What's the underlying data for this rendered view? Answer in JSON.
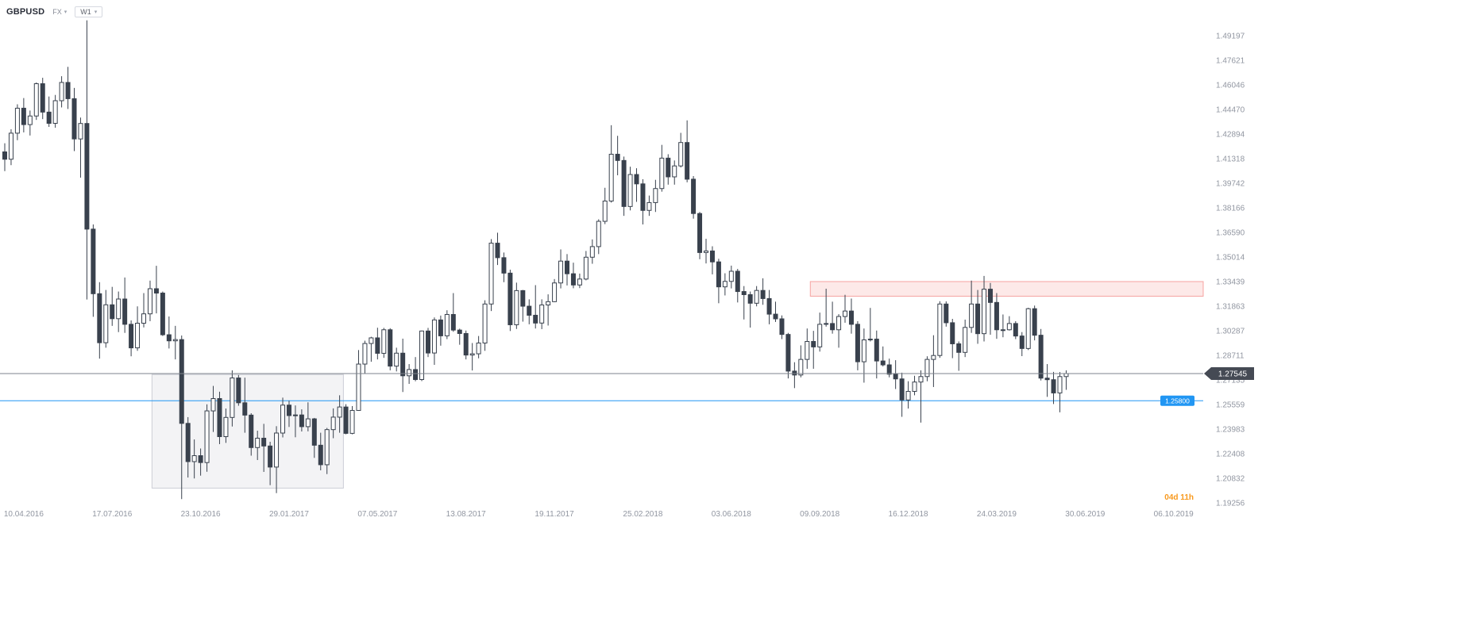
{
  "header": {
    "symbol": "GBPUSD",
    "market": "FX",
    "timeframe": "W1"
  },
  "overlays": {
    "current_price": {
      "label": "1.27545",
      "price": 1.27545,
      "line_color": "#7e838c",
      "badge_bg": "#454a54",
      "badge_text_color": "#ffffff"
    },
    "alert_line": {
      "label": "1.25800",
      "price": 1.258,
      "color": "#2196f3",
      "badge_text_color": "#ffffff"
    },
    "countdown": {
      "text": "04d 11h",
      "color": "#f8991d"
    },
    "resistance_zone": {
      "week_start": 127.5,
      "price_top": 1.3344,
      "price_bottom": 1.325,
      "fill": "rgba(239,83,80,0.13)",
      "stroke": "rgba(239,83,80,0.5)"
    },
    "consolidation_box": {
      "week_start": 23.3,
      "week_end": 53.6,
      "price_top": 1.2748,
      "price_bottom": 1.202,
      "fill": "rgba(140,142,160,0.10)",
      "stroke": "rgba(150,152,170,0.45)"
    }
  },
  "theme": {
    "background": "#ffffff",
    "candle_up_fill": "#ffffff",
    "candle_down_fill": "#39414d",
    "candle_stroke": "#39414d",
    "axis_text": "#9196a1"
  },
  "chart_data": {
    "type": "candlestick",
    "symbol": "GBPUSD",
    "timeframe": "W1 (weekly)",
    "y_axis_range": [
      1.19256,
      1.49197
    ],
    "y_tick_labels": [
      "1.49197",
      "1.47621",
      "1.46046",
      "1.44470",
      "1.42894",
      "1.41318",
      "1.39742",
      "1.38166",
      "1.36590",
      "1.35014",
      "1.33439",
      "1.31863",
      "1.30287",
      "1.28711",
      "1.27135",
      "1.25559",
      "1.23983",
      "1.22408",
      "1.20832",
      "1.19256"
    ],
    "x_tick_labels": [
      {
        "label": "10.04.2016",
        "week": 3
      },
      {
        "label": "17.07.2016",
        "week": 17
      },
      {
        "label": "23.10.2016",
        "week": 31
      },
      {
        "label": "29.01.2017",
        "week": 45
      },
      {
        "label": "07.05.2017",
        "week": 59
      },
      {
        "label": "13.08.2017",
        "week": 73
      },
      {
        "label": "19.11.2017",
        "week": 87
      },
      {
        "label": "25.02.2018",
        "week": 101
      },
      {
        "label": "03.06.2018",
        "week": 115
      },
      {
        "label": "09.09.2018",
        "week": 129
      },
      {
        "label": "16.12.2018",
        "week": 143
      },
      {
        "label": "24.03.2019",
        "week": 157
      },
      {
        "label": "30.06.2019",
        "week": 171
      },
      {
        "label": "06.10.2019",
        "week": 185
      }
    ],
    "last_price": 1.27545,
    "candles": [
      [
        1.4175,
        1.423,
        1.4052,
        1.4128
      ],
      [
        1.4128,
        1.432,
        1.409,
        1.4295
      ],
      [
        1.4295,
        1.448,
        1.425,
        1.4455
      ],
      [
        1.4455,
        1.452,
        1.43,
        1.435
      ],
      [
        1.435,
        1.444,
        1.428,
        1.4405
      ],
      [
        1.4405,
        1.462,
        1.438,
        1.4612
      ],
      [
        1.4612,
        1.465,
        1.4385,
        1.443
      ],
      [
        1.443,
        1.453,
        1.4335,
        1.4358
      ],
      [
        1.4358,
        1.454,
        1.433,
        1.4503
      ],
      [
        1.4503,
        1.466,
        1.446,
        1.462
      ],
      [
        1.462,
        1.472,
        1.445,
        1.4516
      ],
      [
        1.4516,
        1.4585,
        1.418,
        1.4258
      ],
      [
        1.4258,
        1.4395,
        1.401,
        1.4357
      ],
      [
        1.4357,
        1.5018,
        1.3229,
        1.368
      ],
      [
        1.368,
        1.371,
        1.3118,
        1.3266
      ],
      [
        1.3266,
        1.334,
        1.285,
        1.2952
      ],
      [
        1.2952,
        1.329,
        1.292,
        1.3195
      ],
      [
        1.3195,
        1.331,
        1.306,
        1.3106
      ],
      [
        1.3106,
        1.328,
        1.302,
        1.3232
      ],
      [
        1.3232,
        1.337,
        1.3015,
        1.307
      ],
      [
        1.307,
        1.3095,
        1.2865,
        1.2919
      ],
      [
        1.2919,
        1.3185,
        1.29,
        1.3077
      ],
      [
        1.3077,
        1.327,
        1.305,
        1.3137
      ],
      [
        1.3137,
        1.335,
        1.309,
        1.3298
      ],
      [
        1.3298,
        1.3445,
        1.314,
        1.327
      ],
      [
        1.327,
        1.328,
        1.2995,
        1.3003
      ],
      [
        1.3003,
        1.312,
        1.2915,
        1.2964
      ],
      [
        1.2964,
        1.306,
        1.2845,
        1.2972
      ],
      [
        1.2972,
        1.2998,
        1.195,
        1.2435
      ],
      [
        1.2435,
        1.2475,
        1.2088,
        1.219
      ],
      [
        1.219,
        1.2332,
        1.2082,
        1.2228
      ],
      [
        1.2228,
        1.2274,
        1.21,
        1.2184
      ],
      [
        1.2184,
        1.2557,
        1.2125,
        1.2515
      ],
      [
        1.2515,
        1.2675,
        1.238,
        1.2594
      ],
      [
        1.2594,
        1.2638,
        1.2302,
        1.235
      ],
      [
        1.235,
        1.253,
        1.231,
        1.2473
      ],
      [
        1.2473,
        1.2775,
        1.2415,
        1.2726
      ],
      [
        1.2726,
        1.2745,
        1.2548,
        1.2567
      ],
      [
        1.2567,
        1.2728,
        1.2375,
        1.2488
      ],
      [
        1.2488,
        1.25,
        1.2228,
        1.228
      ],
      [
        1.228,
        1.2388,
        1.22,
        1.234
      ],
      [
        1.234,
        1.2432,
        1.2124,
        1.229
      ],
      [
        1.229,
        1.2317,
        1.2039,
        1.2155
      ],
      [
        1.2155,
        1.2417,
        1.1988,
        1.2373
      ],
      [
        1.2373,
        1.26,
        1.2345,
        1.2552
      ],
      [
        1.2552,
        1.258,
        1.2412,
        1.2485
      ],
      [
        1.2485,
        1.255,
        1.2346,
        1.2489
      ],
      [
        1.2489,
        1.2525,
        1.2383,
        1.2414
      ],
      [
        1.2414,
        1.257,
        1.2384,
        1.2464
      ],
      [
        1.2464,
        1.247,
        1.2214,
        1.2295
      ],
      [
        1.2295,
        1.2375,
        1.2134,
        1.217
      ],
      [
        1.217,
        1.2406,
        1.211,
        1.2395
      ],
      [
        1.2395,
        1.2531,
        1.234,
        1.2475
      ],
      [
        1.2475,
        1.2615,
        1.2375,
        1.254
      ],
      [
        1.254,
        1.2558,
        1.2365,
        1.2371
      ],
      [
        1.2371,
        1.2546,
        1.2365,
        1.2518
      ],
      [
        1.2518,
        1.2905,
        1.2515,
        1.2815
      ],
      [
        1.2815,
        1.2965,
        1.2755,
        1.2947
      ],
      [
        1.2947,
        1.299,
        1.283,
        1.2983
      ],
      [
        1.2983,
        1.3048,
        1.2845,
        1.2884
      ],
      [
        1.2884,
        1.3047,
        1.2855,
        1.3035
      ],
      [
        1.3035,
        1.3045,
        1.2775,
        1.2802
      ],
      [
        1.2802,
        1.292,
        1.2768,
        1.2885
      ],
      [
        1.2885,
        1.2978,
        1.2636,
        1.274
      ],
      [
        1.274,
        1.2815,
        1.2688,
        1.278
      ],
      [
        1.278,
        1.286,
        1.2705,
        1.2716
      ],
      [
        1.2716,
        1.303,
        1.2706,
        1.3027
      ],
      [
        1.3027,
        1.3047,
        1.286,
        1.2886
      ],
      [
        1.2886,
        1.3114,
        1.281,
        1.3098
      ],
      [
        1.3098,
        1.3126,
        1.2933,
        1.2996
      ],
      [
        1.2996,
        1.316,
        1.2975,
        1.3133
      ],
      [
        1.3133,
        1.327,
        1.3022,
        1.3033
      ],
      [
        1.3033,
        1.3042,
        1.2939,
        1.3011
      ],
      [
        1.3011,
        1.303,
        1.2845,
        1.2873
      ],
      [
        1.2873,
        1.295,
        1.2774,
        1.2881
      ],
      [
        1.2881,
        1.2995,
        1.2852,
        1.295
      ],
      [
        1.295,
        1.3224,
        1.29,
        1.32
      ],
      [
        1.32,
        1.3616,
        1.3155,
        1.359
      ],
      [
        1.359,
        1.3657,
        1.345,
        1.3497
      ],
      [
        1.3497,
        1.353,
        1.334,
        1.3398
      ],
      [
        1.3398,
        1.342,
        1.3027,
        1.3067
      ],
      [
        1.3067,
        1.3337,
        1.304,
        1.3286
      ],
      [
        1.3286,
        1.329,
        1.3087,
        1.3186
      ],
      [
        1.3186,
        1.323,
        1.307,
        1.3128
      ],
      [
        1.3128,
        1.3321,
        1.3043,
        1.3078
      ],
      [
        1.3078,
        1.323,
        1.3039,
        1.3194
      ],
      [
        1.3194,
        1.3262,
        1.3062,
        1.3215
      ],
      [
        1.3215,
        1.336,
        1.3212,
        1.3335
      ],
      [
        1.3335,
        1.355,
        1.33,
        1.3475
      ],
      [
        1.3475,
        1.352,
        1.3319,
        1.3394
      ],
      [
        1.3394,
        1.3465,
        1.3301,
        1.3322
      ],
      [
        1.3322,
        1.3395,
        1.3302,
        1.336
      ],
      [
        1.336,
        1.354,
        1.3352,
        1.35
      ],
      [
        1.35,
        1.3614,
        1.3458,
        1.3568
      ],
      [
        1.3568,
        1.3743,
        1.352,
        1.373
      ],
      [
        1.373,
        1.3945,
        1.3712,
        1.386
      ],
      [
        1.386,
        1.4346,
        1.385,
        1.416
      ],
      [
        1.416,
        1.4278,
        1.4025,
        1.412
      ],
      [
        1.412,
        1.4145,
        1.3765,
        1.3825
      ],
      [
        1.3825,
        1.408,
        1.38,
        1.403
      ],
      [
        1.403,
        1.407,
        1.3855,
        1.397
      ],
      [
        1.397,
        1.4,
        1.371,
        1.38
      ],
      [
        1.38,
        1.3895,
        1.3765,
        1.385
      ],
      [
        1.385,
        1.3996,
        1.379,
        1.394
      ],
      [
        1.394,
        1.422,
        1.392,
        1.4135
      ],
      [
        1.4135,
        1.416,
        1.3965,
        1.4015
      ],
      [
        1.4015,
        1.412,
        1.3965,
        1.4085
      ],
      [
        1.4085,
        1.4297,
        1.4075,
        1.4235
      ],
      [
        1.4235,
        1.4377,
        1.398,
        1.4
      ],
      [
        1.4,
        1.402,
        1.3747,
        1.378
      ],
      [
        1.378,
        1.379,
        1.3487,
        1.353
      ],
      [
        1.353,
        1.3618,
        1.346,
        1.354
      ],
      [
        1.354,
        1.357,
        1.339,
        1.347
      ],
      [
        1.347,
        1.349,
        1.3205,
        1.331
      ],
      [
        1.331,
        1.3397,
        1.3255,
        1.3345
      ],
      [
        1.3345,
        1.3446,
        1.33,
        1.341
      ],
      [
        1.341,
        1.3425,
        1.321,
        1.328
      ],
      [
        1.328,
        1.3315,
        1.3101,
        1.326
      ],
      [
        1.326,
        1.328,
        1.3049,
        1.3205
      ],
      [
        1.3205,
        1.3315,
        1.3185,
        1.3287
      ],
      [
        1.3287,
        1.3365,
        1.3195,
        1.3235
      ],
      [
        1.3235,
        1.329,
        1.307,
        1.3135
      ],
      [
        1.3135,
        1.3215,
        1.3085,
        1.3105
      ],
      [
        1.3105,
        1.3127,
        1.2975,
        1.3005
      ],
      [
        1.3005,
        1.3015,
        1.2723,
        1.277
      ],
      [
        1.277,
        1.2827,
        1.2661,
        1.2745
      ],
      [
        1.2745,
        1.2935,
        1.273,
        1.2845
      ],
      [
        1.2845,
        1.3043,
        1.2785,
        1.296
      ],
      [
        1.296,
        1.3028,
        1.2785,
        1.2925
      ],
      [
        1.2925,
        1.3145,
        1.2895,
        1.307
      ],
      [
        1.307,
        1.3298,
        1.3055,
        1.3075
      ],
      [
        1.3075,
        1.3215,
        1.301,
        1.3035
      ],
      [
        1.3035,
        1.3135,
        1.292,
        1.312
      ],
      [
        1.312,
        1.3259,
        1.308,
        1.3155
      ],
      [
        1.3155,
        1.3235,
        1.301,
        1.307
      ],
      [
        1.307,
        1.309,
        1.2775,
        1.283
      ],
      [
        1.283,
        1.3043,
        1.2696,
        1.297
      ],
      [
        1.297,
        1.3175,
        1.296,
        1.2975
      ],
      [
        1.2975,
        1.303,
        1.2723,
        1.2835
      ],
      [
        1.2835,
        1.2928,
        1.28,
        1.281
      ],
      [
        1.281,
        1.285,
        1.273,
        1.275
      ],
      [
        1.275,
        1.284,
        1.2655,
        1.272
      ],
      [
        1.272,
        1.276,
        1.2477,
        1.2585
      ],
      [
        1.2585,
        1.2705,
        1.253,
        1.264
      ],
      [
        1.264,
        1.274,
        1.2615,
        1.27
      ],
      [
        1.27,
        1.2775,
        1.244,
        1.2735
      ],
      [
        1.2735,
        1.2865,
        1.2705,
        1.2845
      ],
      [
        1.2845,
        1.3,
        1.2668,
        1.287
      ],
      [
        1.287,
        1.3218,
        1.2855,
        1.32
      ],
      [
        1.32,
        1.3217,
        1.3055,
        1.308
      ],
      [
        1.308,
        1.3105,
        1.2853,
        1.2945
      ],
      [
        1.2945,
        1.296,
        1.2772,
        1.289
      ],
      [
        1.289,
        1.31,
        1.286,
        1.305
      ],
      [
        1.305,
        1.335,
        1.3015,
        1.32
      ],
      [
        1.32,
        1.329,
        1.2945,
        1.301
      ],
      [
        1.301,
        1.338,
        1.296,
        1.3295
      ],
      [
        1.3295,
        1.3335,
        1.3003,
        1.321
      ],
      [
        1.321,
        1.327,
        1.2977,
        1.3035
      ],
      [
        1.3035,
        1.3133,
        1.2987,
        1.3035
      ],
      [
        1.3035,
        1.3122,
        1.303,
        1.3075
      ],
      [
        1.3075,
        1.309,
        1.2975,
        1.2995
      ],
      [
        1.2995,
        1.302,
        1.2866,
        1.2915
      ],
      [
        1.2915,
        1.3176,
        1.2905,
        1.317
      ],
      [
        1.317,
        1.319,
        1.2967,
        1.3
      ],
      [
        1.3,
        1.304,
        1.271,
        1.2725
      ],
      [
        1.2725,
        1.2815,
        1.2605,
        1.2715
      ],
      [
        1.2715,
        1.2765,
        1.2559,
        1.263
      ],
      [
        1.263,
        1.2764,
        1.2506,
        1.2735
      ],
      [
        1.2735,
        1.2775,
        1.265,
        1.27545
      ]
    ]
  }
}
